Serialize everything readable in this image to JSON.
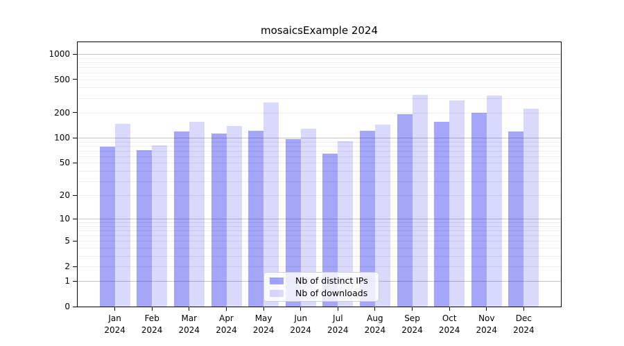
{
  "title": "mosaicsExample 2024",
  "chart_data": {
    "type": "bar",
    "title": "mosaicsExample 2024",
    "categories": [
      "Jan 2024",
      "Feb 2024",
      "Mar 2024",
      "Apr 2024",
      "May 2024",
      "Jun 2024",
      "Jul 2024",
      "Aug 2024",
      "Sep 2024",
      "Oct 2024",
      "Nov 2024",
      "Dec 2024"
    ],
    "series": [
      {
        "name": "Nb of distinct IPs",
        "color": "rgba(0,0,238,0.35)",
        "values": [
          79,
          71,
          120,
          113,
          122,
          96,
          65,
          122,
          192,
          156,
          201,
          120
        ]
      },
      {
        "name": "Nb of downloads",
        "color": "rgba(0,0,238,0.15)",
        "values": [
          148,
          82,
          157,
          140,
          265,
          128,
          92,
          143,
          330,
          280,
          320,
          222
        ]
      }
    ],
    "yscale": "log1p",
    "ylim": [
      0,
      1380
    ],
    "y_tick_labels": [
      1000,
      500,
      200,
      100,
      50,
      20,
      10,
      5,
      2,
      1,
      0
    ],
    "grid": "horizontal major+minor",
    "legend_position": "lower center",
    "xlabel": "",
    "ylabel": ""
  },
  "colors": {
    "bar_ips": "rgba(0,0,238,0.35)",
    "bar_downloads": "rgba(0,0,238,0.15)",
    "grid_major": "#c6c6c6",
    "grid_minor": "#eaeaea",
    "axis": "#000000",
    "legend_border": "#cccccc",
    "legend_bg": "rgba(255,255,255,0.8)"
  }
}
